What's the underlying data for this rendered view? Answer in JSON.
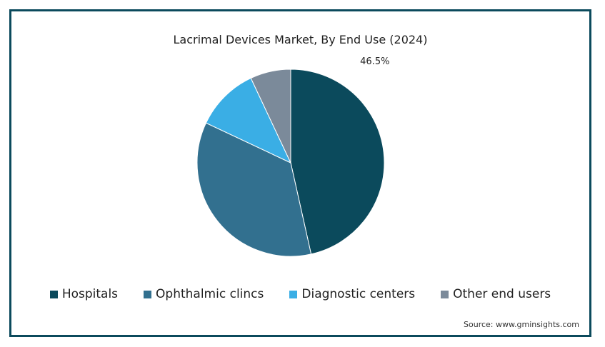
{
  "chart_data": {
    "type": "pie",
    "title": "Lacrimal Devices Market, By End Use (2024)",
    "categories": [
      "Hospitals",
      "Ophthalmic clincs",
      "Diagnostic centers",
      "Other end users"
    ],
    "values": [
      46.5,
      35.5,
      11,
      7
    ],
    "colors": [
      "#0b4a5c",
      "#32708f",
      "#3aaee5",
      "#7b8a9a"
    ],
    "data_labels": [
      "46.5%",
      "",
      "",
      ""
    ],
    "legend_position": "bottom"
  },
  "source": "Source: www.gminsights.com"
}
